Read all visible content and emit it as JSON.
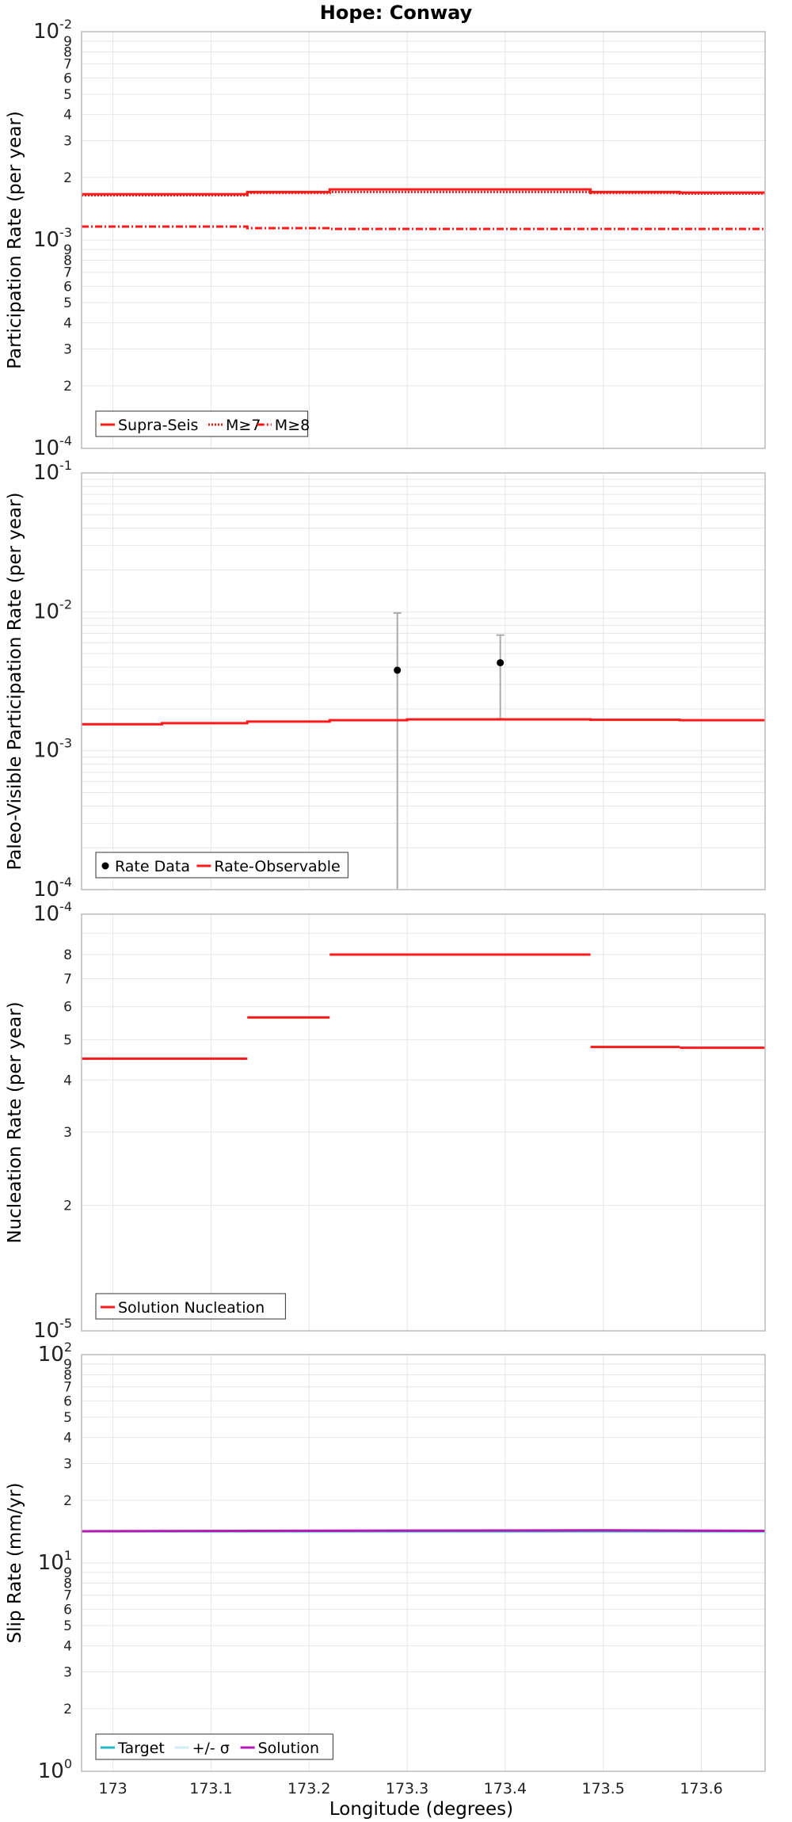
{
  "title": "Hope: Conway",
  "xlabel": "Longitude (degrees)",
  "x_ticks": [
    "173",
    "173.1",
    "173.2",
    "173.3",
    "173.4",
    "173.5",
    "173.6"
  ],
  "colors": {
    "red": "#ff1a1a",
    "black": "#000000",
    "grey": "#aaaaaa",
    "cyan": "#26b5c8",
    "magenta": "#b31ab3",
    "grid": "#e6e6e6"
  },
  "chart_data": [
    {
      "type": "line",
      "name": "participation",
      "ylabel": "Participation Rate (per year)",
      "yscale": "log",
      "ylim": [
        0.0001,
        0.01
      ],
      "xlim": [
        172.968,
        173.665
      ],
      "legend": "bottom-left",
      "series": [
        {
          "name": "Supra-Seis",
          "style": "solid",
          "x": [
            172.968,
            173.137,
            173.137,
            173.221,
            173.221,
            173.487,
            173.487,
            173.578,
            173.578,
            173.665
          ],
          "y": [
            0.00166,
            0.00166,
            0.0017,
            0.0017,
            0.00175,
            0.00175,
            0.0017,
            0.0017,
            0.00169,
            0.00169
          ]
        },
        {
          "name": "M≥7",
          "style": "dotted",
          "x": [
            172.968,
            173.137,
            173.137,
            173.221,
            173.221,
            173.487,
            173.487,
            173.578,
            173.578,
            173.665
          ],
          "y": [
            0.00164,
            0.00164,
            0.00168,
            0.00168,
            0.0017,
            0.0017,
            0.00168,
            0.00168,
            0.00167,
            0.00167
          ]
        },
        {
          "name": "M≥8",
          "style": "dashdot",
          "x": [
            172.968,
            173.137,
            173.137,
            173.221,
            173.221,
            173.487,
            173.487,
            173.578,
            173.578,
            173.665
          ],
          "y": [
            0.00116,
            0.00116,
            0.00114,
            0.00114,
            0.00113,
            0.00113,
            0.00113,
            0.00113,
            0.00113,
            0.00113
          ]
        }
      ]
    },
    {
      "type": "line",
      "name": "paleo",
      "ylabel": "Paleo-Visible Participation Rate (per year)",
      "yscale": "log",
      "ylim": [
        0.0001,
        0.1
      ],
      "xlim": [
        172.968,
        173.665
      ],
      "legend": "bottom-left",
      "points": {
        "name": "Rate Data",
        "x": [
          173.29,
          173.395
        ],
        "y": [
          0.0038,
          0.0043
        ],
        "low": [
          0.0001,
          0.0017
        ],
        "high": [
          0.0098,
          0.0068
        ]
      },
      "series": [
        {
          "name": "Rate-Observable",
          "style": "solid",
          "x": [
            172.968,
            173.05,
            173.05,
            173.137,
            173.137,
            173.221,
            173.221,
            173.3,
            173.3,
            173.487,
            173.487,
            173.578,
            173.578,
            173.665
          ],
          "y": [
            0.00155,
            0.00155,
            0.00158,
            0.00158,
            0.00162,
            0.00162,
            0.00166,
            0.00166,
            0.00168,
            0.00168,
            0.00167,
            0.00167,
            0.00166,
            0.00166
          ]
        }
      ]
    },
    {
      "type": "line",
      "name": "nucleation",
      "ylabel": "Nucleation Rate (per year)",
      "yscale": "log",
      "ylim": [
        1e-05,
        0.0001
      ],
      "xlim": [
        172.968,
        173.665
      ],
      "legend": "bottom-left",
      "series": [
        {
          "name": "Solution Nucleation",
          "style": "solid",
          "segments": true,
          "x": [
            172.968,
            173.137,
            173.137,
            173.221,
            173.221,
            173.487,
            173.487,
            173.578,
            173.578,
            173.665
          ],
          "y": [
            4.5e-05,
            4.5e-05,
            5.65e-05,
            5.65e-05,
            8e-05,
            8e-05,
            4.8e-05,
            4.8e-05,
            4.78e-05,
            4.78e-05
          ]
        }
      ]
    },
    {
      "type": "line",
      "name": "slip",
      "ylabel": "Slip Rate (mm/yr)",
      "yscale": "log",
      "ylim": [
        1,
        100
      ],
      "xlim": [
        172.968,
        173.665
      ],
      "legend": "bottom-left",
      "series": [
        {
          "name": "Target",
          "style": "solid",
          "x": [
            172.968,
            173.665
          ],
          "y": [
            14.2,
            14.2
          ]
        },
        {
          "name": "+/- σ",
          "style": "solid",
          "x": [],
          "y": []
        },
        {
          "name": "Solution",
          "style": "solid",
          "x": [
            172.968,
            173.3,
            173.5,
            173.665
          ],
          "y": [
            14.2,
            14.3,
            14.35,
            14.25
          ]
        }
      ]
    }
  ]
}
